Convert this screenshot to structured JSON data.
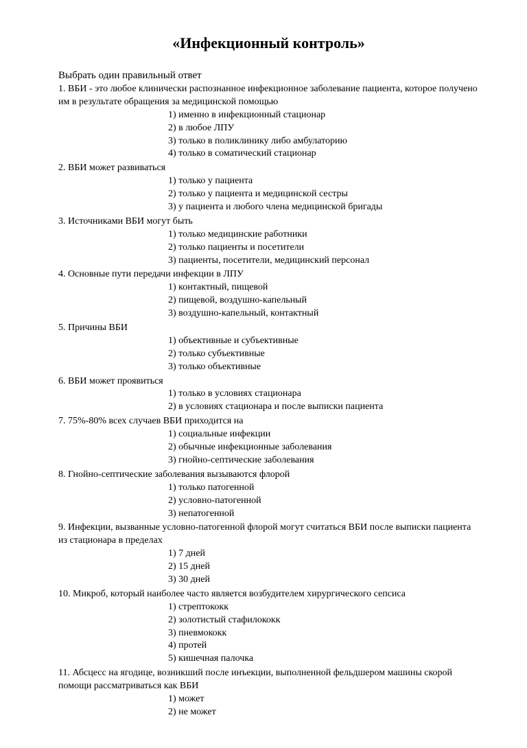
{
  "title": "«Инфекционный контроль»",
  "instruction": "Выбрать один правильный  ответ",
  "questions": [
    {
      "num": "1.",
      "text": "ВБИ - это любое клинически распознанное инфекционное заболевание пациента, которое получено им в результате обращения за медицинской помощью",
      "options": [
        "1) именно в инфекционный стационар",
        "2) в любое ЛПУ",
        "3) только в поликлинику либо амбулаторию",
        "4) только в соматический стационар"
      ]
    },
    {
      "num": "2.",
      "text": "ВБИ может развиваться",
      "options": [
        "1) только у пациента",
        "2) только у пациента и медицинской сестры",
        "3) у пациента и любого члена медицинской бригады"
      ]
    },
    {
      "num": "3.",
      "text": "Источниками ВБИ могут быть",
      "options": [
        "1) только медицинские работники",
        "2) только пациенты и посетители",
        "3) пациенты, посетители, медицинский персонал"
      ]
    },
    {
      "num": "4.",
      "text": "Основные пути передачи инфекции в ЛПУ",
      "options": [
        "1) контактный, пищевой",
        "2) пищевой, воздушно-капельный",
        "3) воздушно-капельный, контактный"
      ]
    },
    {
      "num": "5.",
      "text": "Причины ВБИ",
      "options": [
        "1) объективные и субъективные",
        "2) только субъективные",
        "3) только объективные"
      ]
    },
    {
      "num": "6.",
      "text": "ВБИ может проявиться",
      "options": [
        "1) только в условиях стационара",
        "2) в условиях стационара и после выписки пациента"
      ]
    },
    {
      "num": "7.",
      "text": "75%-80% всех случаев ВБИ приходится на",
      "options": [
        "1) социальные инфекции",
        "2) обычные инфекционные заболевания",
        "3) гнойно-септические заболевания"
      ]
    },
    {
      "num": "8.",
      "text": "Гнойно-септические заболевания вызываются флорой",
      "options": [
        "1)  только патогенной",
        "2)  условно-патогенной",
        "3) непатогенной"
      ]
    },
    {
      "num": "9.",
      "text": "Инфекции, вызванные условно-патогенной флорой могут считаться ВБИ  после выписки пациента из стационара в пределах",
      "options": [
        "1) 7 дней",
        "2) 15 дней",
        "3) 30 дней"
      ]
    },
    {
      "num": "10.",
      "text": "Микроб, который наиболее часто является возбудителем хирургического сепсиса",
      "options": [
        "1) стрептококк",
        "2) золотистый стафилококк",
        "3) пневмококк",
        "4) протей",
        "5) кишечная палочка"
      ]
    },
    {
      "num": "11.",
      "text": "Абсцесс на ягодице, возникший после инъекции, выполненной фельдшером машины скорой помощи рассматриваться как ВБИ",
      "options": [
        "1) может",
        "2) не может"
      ]
    }
  ]
}
